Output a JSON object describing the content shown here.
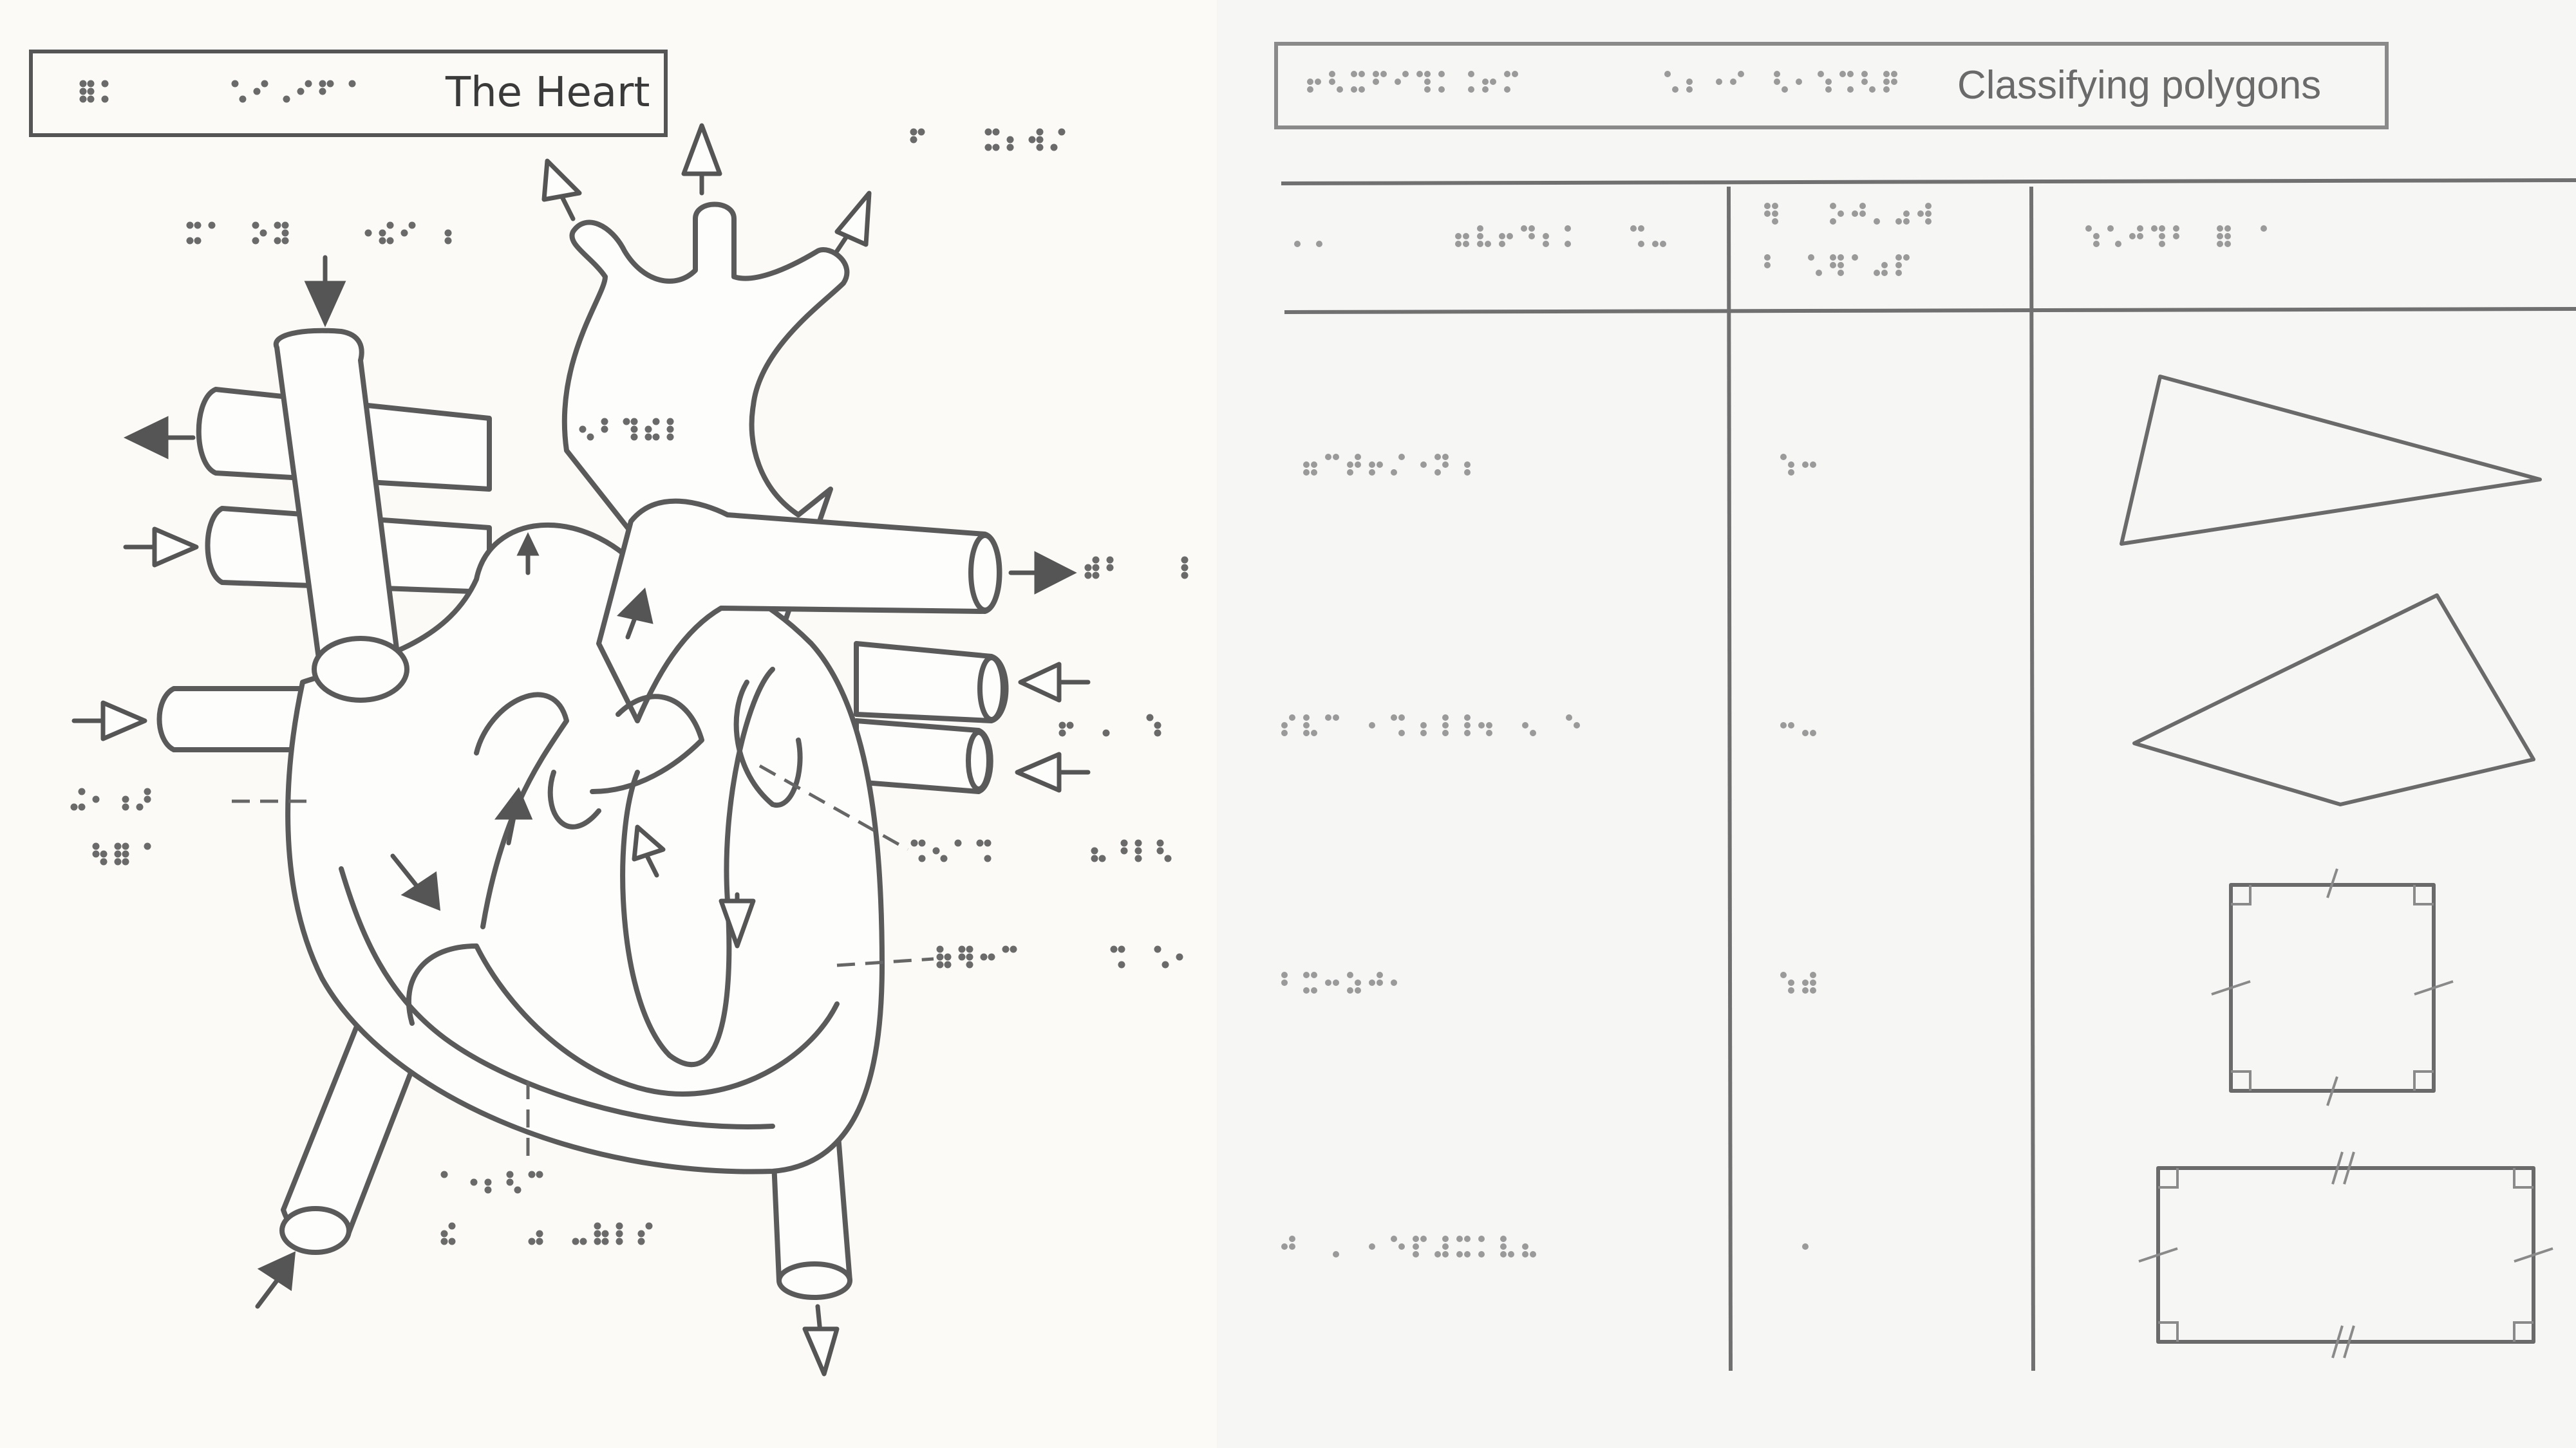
{
  "heart_panel": {
    "title": "The Heart",
    "braille_lines": 13
  },
  "polygon_panel": {
    "title": "Classifying polygons",
    "rows": [
      {
        "shape": "triangle",
        "sides_braille": "yes"
      },
      {
        "shape": "quadrilateral",
        "sides_braille": "yes"
      },
      {
        "shape": "square",
        "sides_braille": "yes"
      },
      {
        "shape": "rectangle",
        "sides_braille": "yes"
      }
    ]
  },
  "colors": {
    "paper_left": "#fbfaf6",
    "paper_right": "#f6f6f4",
    "ink": "#555555",
    "braille": "#8a8a8a"
  }
}
